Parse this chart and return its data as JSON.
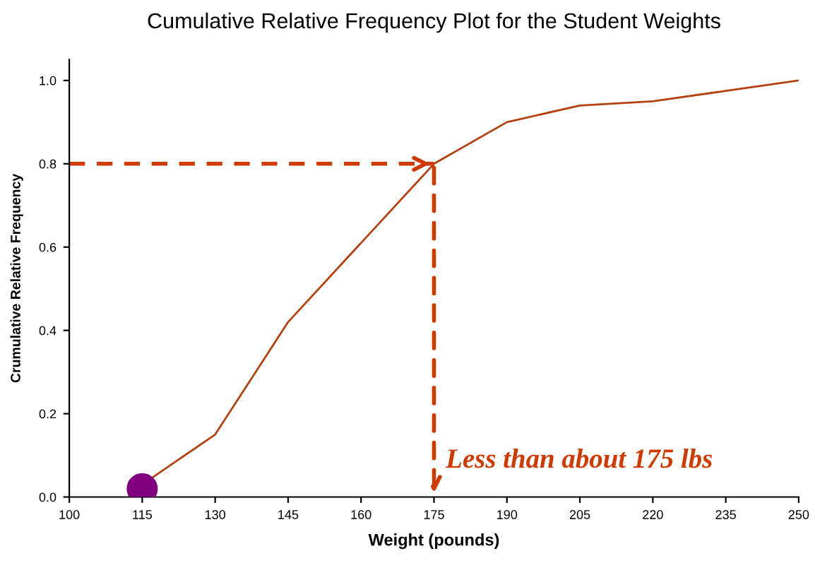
{
  "chart_data": {
    "type": "line",
    "title": "Cumulative Relative Frequency Plot for the Student Weights",
    "xlabel": "Weight (pounds)",
    "ylabel": "Crumulative Relative Frequency",
    "x": [
      115,
      130,
      145,
      160,
      175,
      190,
      205,
      220,
      235,
      250
    ],
    "series": [
      {
        "color": "#b5400f",
        "values": [
          0.03,
          0.15,
          0.42,
          0.61,
          0.8,
          0.9,
          0.94,
          0.95,
          0.975,
          1.0
        ],
        "marker": "none"
      },
      {
        "type": "scatter",
        "color": "#800080",
        "x": [
          115
        ],
        "values": [
          0.02
        ],
        "marker": "circle"
      },
      {
        "type": "line",
        "color": "#d03a00",
        "x": [
          100,
          175
        ],
        "values": [
          0.8,
          0.8
        ],
        "marker": "none",
        "line_style": "dashed"
      }
    ],
    "annotations": [
      {
        "text": "Less than about 175 lbs",
        "x": 175,
        "y": 0.8
      }
    ],
    "xlim": [
      100,
      250
    ],
    "xticks": [
      100,
      115,
      130,
      145,
      160,
      175,
      190,
      205,
      220,
      235,
      250
    ],
    "ylim": [
      0,
      1.05
    ],
    "yticks": [
      {
        "value": 0,
        "label": "0.0"
      },
      {
        "value": 0.2,
        "label": "0.2"
      },
      {
        "value": 0.4,
        "label": "0.4"
      },
      {
        "value": 0.6,
        "label": "0.6"
      },
      {
        "value": 0.8,
        "label": "0.8"
      },
      {
        "value": 1.0,
        "label": "1.0"
      }
    ],
    "grid": false,
    "legend": false
  }
}
